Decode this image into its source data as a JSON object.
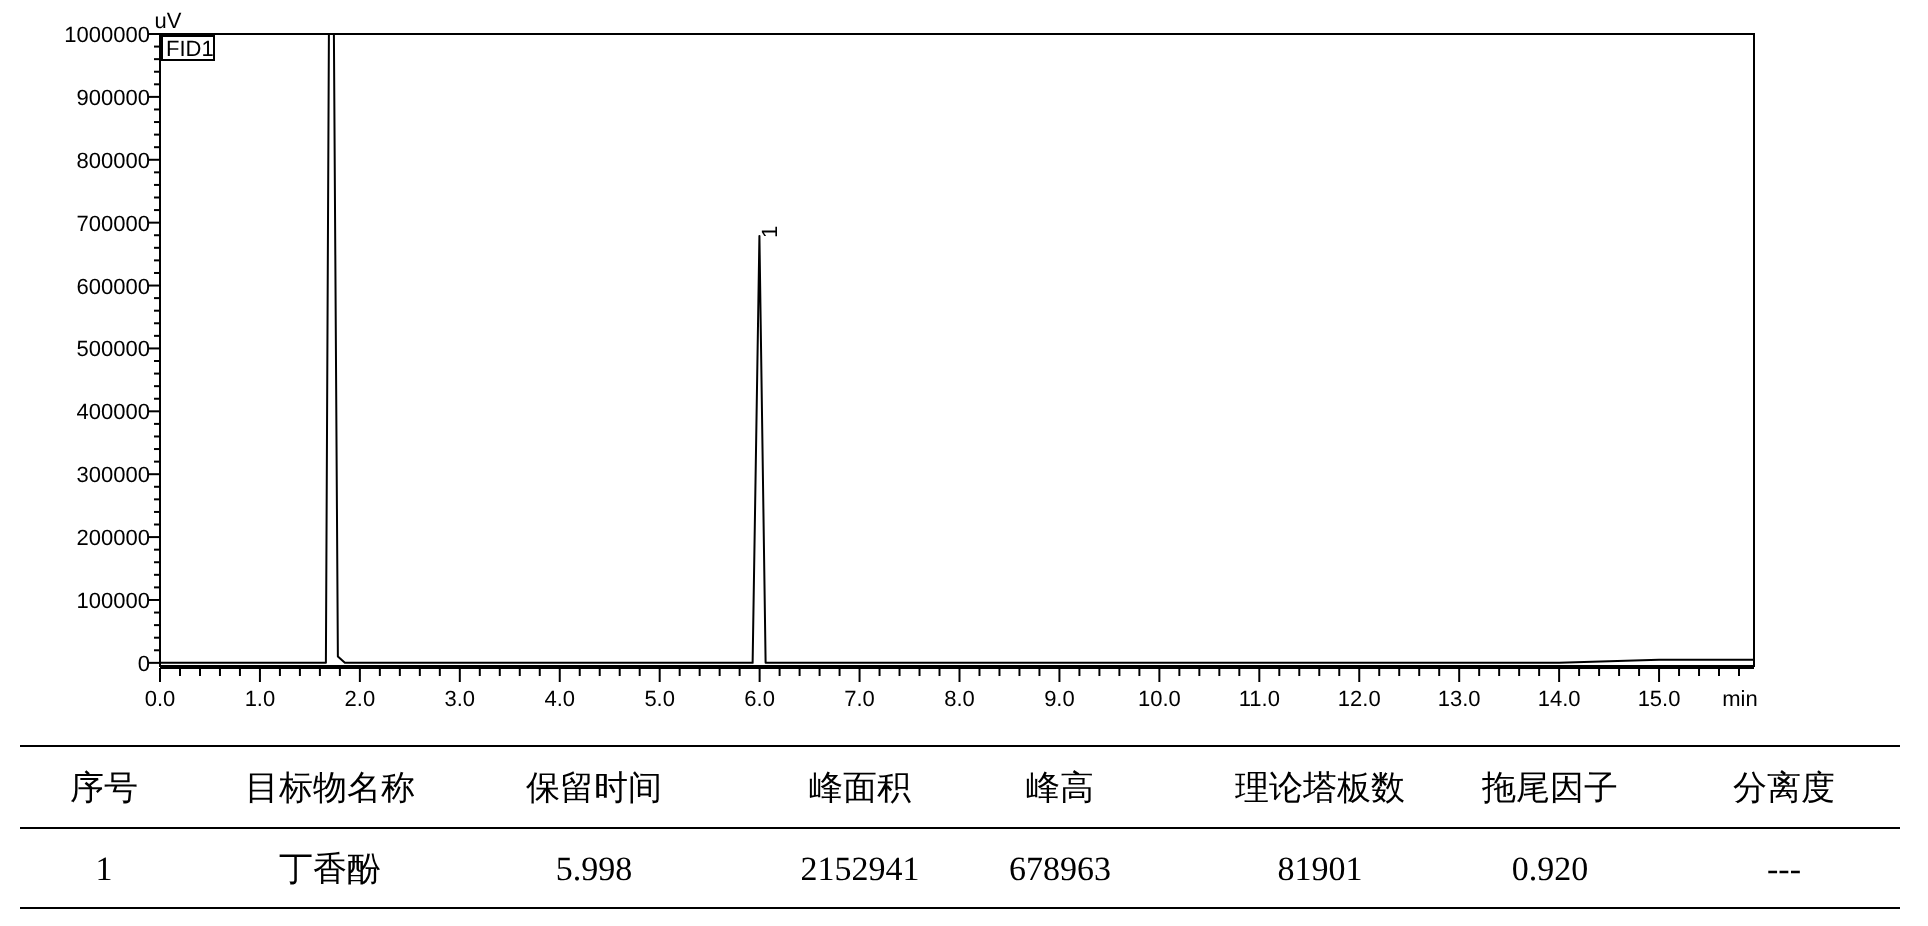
{
  "chart_data": {
    "type": "line",
    "ylabel": "uV",
    "xlabel": "min",
    "x": [
      0,
      1.0,
      1.66,
      1.69,
      1.74,
      1.78,
      1.85,
      2.5,
      4.0,
      5.0,
      5.9,
      5.93,
      5.998,
      6.06,
      6.1,
      7.0,
      8.0,
      9.0,
      10.0,
      11.0,
      12.0,
      13.0,
      14.0,
      15.0,
      15.95
    ],
    "series": [
      {
        "color": "#000000",
        "values": [
          0,
          0,
          0,
          1000000,
          1000000,
          10000,
          0,
          0,
          0,
          0,
          0,
          0,
          678963,
          0,
          0,
          0,
          0,
          0,
          0,
          0,
          0,
          0,
          0,
          5000,
          5000
        ]
      }
    ],
    "xlim": [
      0,
      15.95
    ],
    "ylim": [
      -5000,
      1000000
    ],
    "xticks": [
      {
        "value": 0,
        "label": "0.0"
      },
      {
        "value": 1,
        "label": "1.0"
      },
      {
        "value": 2,
        "label": "2.0"
      },
      {
        "value": 3,
        "label": "3.0"
      },
      {
        "value": 4,
        "label": "4.0"
      },
      {
        "value": 5,
        "label": "5.0"
      },
      {
        "value": 6,
        "label": "6.0"
      },
      {
        "value": 7,
        "label": "7.0"
      },
      {
        "value": 8,
        "label": "8.0"
      },
      {
        "value": 9,
        "label": "9.0"
      },
      {
        "value": 10,
        "label": "10.0"
      },
      {
        "value": 11,
        "label": "11.0"
      },
      {
        "value": 12,
        "label": "12.0"
      },
      {
        "value": 13,
        "label": "13.0"
      },
      {
        "value": 14,
        "label": "14.0"
      },
      {
        "value": 15,
        "label": "15.0"
      },
      {
        "value": 0.2,
        "label": null
      },
      {
        "value": 0.4,
        "label": null
      },
      {
        "value": 0.6,
        "label": null
      },
      {
        "value": 0.8,
        "label": null
      },
      {
        "value": 1.2,
        "label": null
      },
      {
        "value": 1.4,
        "label": null
      },
      {
        "value": 1.6,
        "label": null
      },
      {
        "value": 1.8,
        "label": null
      },
      {
        "value": 2.2,
        "label": null
      },
      {
        "value": 2.4,
        "label": null
      },
      {
        "value": 2.6,
        "label": null
      },
      {
        "value": 2.8,
        "label": null
      },
      {
        "value": 3.2,
        "label": null
      },
      {
        "value": 3.4,
        "label": null
      },
      {
        "value": 3.6,
        "label": null
      },
      {
        "value": 3.8,
        "label": null
      },
      {
        "value": 4.2,
        "label": null
      },
      {
        "value": 4.4,
        "label": null
      },
      {
        "value": 4.6,
        "label": null
      },
      {
        "value": 4.8,
        "label": null
      },
      {
        "value": 5.2,
        "label": null
      },
      {
        "value": 5.4,
        "label": null
      },
      {
        "value": 5.6,
        "label": null
      },
      {
        "value": 5.8,
        "label": null
      },
      {
        "value": 6.2,
        "label": null
      },
      {
        "value": 6.4,
        "label": null
      },
      {
        "value": 6.6,
        "label": null
      },
      {
        "value": 6.8,
        "label": null
      },
      {
        "value": 7.2,
        "label": null
      },
      {
        "value": 7.4,
        "label": null
      },
      {
        "value": 7.6,
        "label": null
      },
      {
        "value": 7.8,
        "label": null
      },
      {
        "value": 8.2,
        "label": null
      },
      {
        "value": 8.4,
        "label": null
      },
      {
        "value": 8.6,
        "label": null
      },
      {
        "value": 8.8,
        "label": null
      },
      {
        "value": 9.2,
        "label": null
      },
      {
        "value": 9.4,
        "label": null
      },
      {
        "value": 9.6,
        "label": null
      },
      {
        "value": 9.8,
        "label": null
      },
      {
        "value": 10.2,
        "label": null
      },
      {
        "value": 10.4,
        "label": null
      },
      {
        "value": 10.6,
        "label": null
      },
      {
        "value": 10.8,
        "label": null
      },
      {
        "value": 11.2,
        "label": null
      },
      {
        "value": 11.4,
        "label": null
      },
      {
        "value": 11.6,
        "label": null
      },
      {
        "value": 11.8,
        "label": null
      },
      {
        "value": 12.2,
        "label": null
      },
      {
        "value": 12.4,
        "label": null
      },
      {
        "value": 12.6,
        "label": null
      },
      {
        "value": 12.8,
        "label": null
      },
      {
        "value": 13.2,
        "label": null
      },
      {
        "value": 13.4,
        "label": null
      },
      {
        "value": 13.6,
        "label": null
      },
      {
        "value": 13.8,
        "label": null
      },
      {
        "value": 14.2,
        "label": null
      },
      {
        "value": 14.4,
        "label": null
      },
      {
        "value": 14.6,
        "label": null
      },
      {
        "value": 14.8,
        "label": null
      },
      {
        "value": 15.2,
        "label": null
      },
      {
        "value": 15.4,
        "label": null
      },
      {
        "value": 15.6,
        "label": null
      },
      {
        "value": 15.8,
        "label": null
      }
    ],
    "yticks": [
      0,
      100000,
      200000,
      300000,
      400000,
      500000,
      600000,
      700000,
      800000,
      900000,
      1000000,
      {
        "value": 20000,
        "label": null
      },
      {
        "value": 40000,
        "label": null
      },
      {
        "value": 60000,
        "label": null
      },
      {
        "value": 80000,
        "label": null
      },
      {
        "value": 120000,
        "label": null
      },
      {
        "value": 140000,
        "label": null
      },
      {
        "value": 160000,
        "label": null
      },
      {
        "value": 180000,
        "label": null
      },
      {
        "value": 220000,
        "label": null
      },
      {
        "value": 240000,
        "label": null
      },
      {
        "value": 260000,
        "label": null
      },
      {
        "value": 280000,
        "label": null
      },
      {
        "value": 320000,
        "label": null
      },
      {
        "value": 340000,
        "label": null
      },
      {
        "value": 360000,
        "label": null
      },
      {
        "value": 380000,
        "label": null
      },
      {
        "value": 420000,
        "label": null
      },
      {
        "value": 440000,
        "label": null
      },
      {
        "value": 460000,
        "label": null
      },
      {
        "value": 480000,
        "label": null
      },
      {
        "value": 520000,
        "label": null
      },
      {
        "value": 540000,
        "label": null
      },
      {
        "value": 560000,
        "label": null
      },
      {
        "value": 580000,
        "label": null
      },
      {
        "value": 620000,
        "label": null
      },
      {
        "value": 640000,
        "label": null
      },
      {
        "value": 660000,
        "label": null
      },
      {
        "value": 680000,
        "label": null
      },
      {
        "value": 720000,
        "label": null
      },
      {
        "value": 740000,
        "label": null
      },
      {
        "value": 760000,
        "label": null
      },
      {
        "value": 780000,
        "label": null
      },
      {
        "value": 820000,
        "label": null
      },
      {
        "value": 840000,
        "label": null
      },
      {
        "value": 860000,
        "label": null
      },
      {
        "value": 880000,
        "label": null
      },
      {
        "value": 920000,
        "label": null
      },
      {
        "value": 940000,
        "label": null
      },
      {
        "value": 960000,
        "label": null
      },
      {
        "value": 980000,
        "label": null
      }
    ],
    "grid": false,
    "marker": "none",
    "line_style": "solid",
    "annotations": [
      "FID1",
      {
        "text": "1",
        "x": 5.998,
        "y": 678963
      },
      "序号",
      "目标物名称",
      "保留时间",
      "峰面积",
      "峰高",
      "理论塔板数",
      "拖尾因子",
      "分离度",
      "1",
      "丁香酚",
      "5.998",
      "2152941",
      "678963",
      "81901",
      "0.920",
      "---"
    ]
  }
}
